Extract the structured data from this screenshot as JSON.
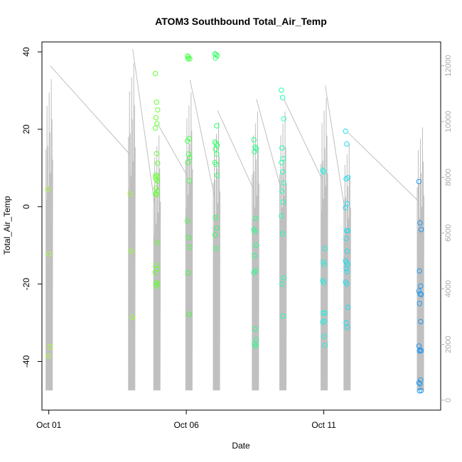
{
  "chart_data": {
    "type": "scatter",
    "title": "ATOM3 Southbound Total_Air_Temp",
    "xlabel": "Date",
    "ylabel": "Total_Air_Temp",
    "x_ticks": [
      "Oct 01",
      "Oct 06",
      "Oct 11"
    ],
    "xlim": [
      "2016-09-30T18:00",
      "2016-10-15T06:00"
    ],
    "ylim": [
      -50,
      40
    ],
    "y_ticks": [
      -40,
      -20,
      0,
      20,
      40
    ],
    "secondary_ylim": [
      0,
      12500
    ],
    "secondary_y_ticks": [
      0,
      2000,
      4000,
      6000,
      8000,
      10000,
      12000
    ],
    "secondary_series_color": "#c0c0c0",
    "grid": false,
    "legend": "none",
    "marker_colors": [
      "#aaff33",
      "#55ff33",
      "#22ff66",
      "#22ffaa",
      "#22ffee",
      "#22ccff",
      "#2299ee"
    ],
    "flights": [
      {
        "date": "2016-10-01T00:00",
        "color": "#aaff33",
        "temps": [
          4.5,
          -12.2,
          -36.2,
          -38.6
        ],
        "alt_max": 12000
      },
      {
        "date": "2016-10-04T00:00",
        "color": "#99ff33",
        "temps": [
          3.3,
          -11.5,
          -28.6
        ],
        "alt_max": 12600
      },
      {
        "date": "2016-10-04T22:00",
        "color": "#66ff33",
        "temps": [
          34.4,
          27.0,
          25.0,
          23.0,
          21.5,
          20.3,
          13.7,
          11.2,
          8.2,
          7.9,
          7.5,
          7.0,
          6.6,
          4.8,
          4.0,
          3.4,
          3.1,
          -9.3,
          -15.2,
          -16.1,
          -17.0,
          -19.6,
          -20.0,
          -20.5
        ],
        "alt_max": 9900
      },
      {
        "date": "2016-10-06T02:00",
        "color": "#44ff44",
        "temps": [
          38.9,
          38.6,
          38.2,
          38.2,
          17.6,
          17.0,
          13.6,
          12.7,
          11.4,
          6.7,
          -3.7,
          -8.0,
          -10.5,
          -17.1,
          -27.8
        ],
        "alt_max": 11500
      },
      {
        "date": "2016-10-07T02:00",
        "color": "#33ff66",
        "temps": [
          39.5,
          39.3,
          39.0,
          38.4,
          20.9,
          16.7,
          16.3,
          15.8,
          14.9,
          13.6,
          11.4,
          10.9,
          8.1,
          -2.8,
          -5.6,
          -7.3,
          -10.8
        ],
        "alt_max": 10400
      },
      {
        "date": "2016-10-08T12:00",
        "color": "#22ff88",
        "temps": [
          17.3,
          15.4,
          15.0,
          14.2,
          -3.0,
          -5.9,
          -6.4,
          -10.0,
          -12.7,
          -16.5,
          -17.0,
          -31.6,
          -34.4,
          -35.5,
          -36.0
        ],
        "alt_max": 10800
      },
      {
        "date": "2016-10-09T12:00",
        "color": "#22ffaa",
        "temps": [
          30.1,
          28.2,
          22.7,
          15.2,
          12.4,
          11.4,
          9.0,
          6.1,
          4.0,
          1.2,
          -2.4,
          -7.0,
          -18.4,
          -20.0,
          -28.3
        ],
        "alt_max": 10800
      },
      {
        "date": "2016-10-11T00:00",
        "color": "#22eedd",
        "temps": [
          9.4,
          9.0,
          -10.8,
          -14.3,
          -15.0,
          -19.1,
          -19.6,
          -27.5,
          -27.5,
          -29.6,
          -29.8,
          -33.5,
          -35.8
        ],
        "alt_max": 11300
      },
      {
        "date": "2016-10-11T20:00",
        "color": "#22ddee",
        "temps": [
          19.5,
          16.2,
          7.5,
          7.2,
          0.8,
          -0.3,
          -6.2,
          -6.2,
          -8.2,
          -11.5,
          -14.0,
          -14.5,
          -15.0,
          -16.0,
          -16.8,
          -19.5,
          -20.0,
          -26.0,
          -30.0,
          -31.2
        ],
        "alt_max": 9600
      },
      {
        "date": "2016-10-14T12:00",
        "color": "#2299ee",
        "temps": [
          6.5,
          -4.2,
          -5.9,
          -16.6,
          -20.5,
          -21.8,
          -22.5,
          -22.7,
          -25.0,
          -29.7,
          -36.0,
          -37.0,
          -37.2,
          -37.3,
          -44.8,
          -45.5,
          -45.8,
          -47.5,
          -47.6
        ],
        "alt_max": 10200
      }
    ]
  }
}
